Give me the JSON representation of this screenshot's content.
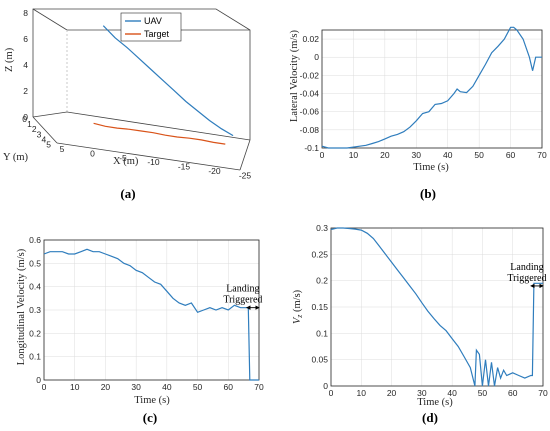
{
  "chart_data": [
    {
      "panel": "(a)",
      "type": "line",
      "projection": "3d",
      "xlabel": "X (m)",
      "ylabel": "Y (m)",
      "zlabel": "Z (m)",
      "x_ticks": [
        "5",
        "0",
        "-5",
        "-10",
        "-15",
        "-20",
        "-25"
      ],
      "y_ticks": [
        "0",
        "1",
        "2",
        "3",
        "4",
        "5"
      ],
      "z_ticks": [
        "0",
        "2",
        "4",
        "6",
        "8"
      ],
      "xlim": [
        5,
        -25
      ],
      "ylim": [
        0,
        5
      ],
      "zlim": [
        0,
        8
      ],
      "legend": "top-right",
      "series": [
        {
          "name": "UAV",
          "color": "#2f7dbd",
          "x": [
            -2,
            -4,
            -6,
            -8,
            -10,
            -12,
            -14,
            -16,
            -18,
            -20,
            -22,
            -24
          ],
          "y": [
            0,
            0,
            0,
            0,
            0,
            0,
            0,
            0,
            0,
            0,
            0,
            0
          ],
          "z": [
            7.1,
            6.3,
            5.7,
            5.0,
            4.3,
            3.6,
            2.9,
            2.2,
            1.6,
            1.0,
            0.5,
            0.1
          ]
        },
        {
          "name": "Target",
          "color": "#d95319",
          "x": [
            -2,
            -4,
            -6,
            -8,
            -10,
            -12,
            -14,
            -16,
            -18,
            -20,
            -22,
            -24
          ],
          "y": [
            2.1,
            2.1,
            2.1,
            2.0,
            2.0,
            2.0,
            1.9,
            1.9,
            1.8,
            1.8,
            1.7,
            1.7
          ],
          "z": [
            0.4,
            0.3,
            0.3,
            0.3,
            0.3,
            0.3,
            0.2,
            0.2,
            0.2,
            0.2,
            0.1,
            0.1
          ]
        }
      ]
    },
    {
      "panel": "(b)",
      "type": "line",
      "xlabel": "Time (s)",
      "ylabel": "Lateral Velocity (m/s)",
      "xlim": [
        0,
        70
      ],
      "ylim": [
        -0.1,
        0.03
      ],
      "x_ticks": [
        0,
        10,
        20,
        30,
        40,
        50,
        60,
        70
      ],
      "y_ticks": [
        -0.1,
        -0.08,
        -0.06,
        -0.04,
        -0.02,
        0,
        0.02
      ],
      "y_tick_labels": [
        "-0.1",
        "-0.08",
        "-0.06",
        "-0.04",
        "-0.02",
        "0",
        "0.02"
      ],
      "grid": true,
      "series": [
        {
          "color": "#2f7dbd",
          "x": [
            0,
            2,
            4,
            6,
            8,
            10,
            12,
            14,
            16,
            18,
            20,
            22,
            24,
            26,
            28,
            30,
            32,
            34,
            36,
            38,
            40,
            42,
            43,
            44,
            46,
            48,
            50,
            52,
            54,
            56,
            58,
            60,
            61,
            62,
            64,
            66,
            67,
            68,
            70
          ],
          "y": [
            -0.098,
            -0.1,
            -0.1,
            -0.1,
            -0.1,
            -0.099,
            -0.098,
            -0.097,
            -0.095,
            -0.093,
            -0.09,
            -0.087,
            -0.085,
            -0.082,
            -0.077,
            -0.07,
            -0.062,
            -0.06,
            -0.052,
            -0.051,
            -0.048,
            -0.04,
            -0.035,
            -0.038,
            -0.039,
            -0.032,
            -0.02,
            -0.008,
            0.005,
            0.012,
            0.02,
            0.033,
            0.033,
            0.03,
            0.02,
            0.0,
            -0.015,
            0.0,
            0.0
          ]
        }
      ]
    },
    {
      "panel": "(c)",
      "type": "line",
      "xlabel": "Time (s)",
      "ylabel": "Longitudinal Velocity (m/s)",
      "xlim": [
        0,
        70
      ],
      "ylim": [
        0,
        0.6
      ],
      "x_ticks": [
        0,
        10,
        20,
        30,
        40,
        50,
        60,
        70
      ],
      "y_ticks": [
        0,
        0.1,
        0.2,
        0.3,
        0.4,
        0.5,
        0.6
      ],
      "y_tick_labels": [
        "0",
        "0.1",
        "0.2",
        "0.3",
        "0.4",
        "0.5",
        "0.6"
      ],
      "grid": true,
      "annotation": {
        "text_line1": "Landing",
        "text_line2": "Triggered",
        "x_from": 66,
        "x_to": 70,
        "y": 0.31
      },
      "series": [
        {
          "color": "#2f7dbd",
          "x": [
            0,
            2,
            4,
            6,
            8,
            10,
            12,
            14,
            16,
            18,
            20,
            22,
            24,
            26,
            28,
            30,
            32,
            34,
            36,
            38,
            40,
            42,
            44,
            46,
            48,
            50,
            52,
            54,
            56,
            58,
            60,
            62,
            64,
            66,
            66.5,
            67,
            70
          ],
          "y": [
            0.54,
            0.55,
            0.55,
            0.55,
            0.54,
            0.54,
            0.55,
            0.56,
            0.55,
            0.55,
            0.54,
            0.53,
            0.52,
            0.5,
            0.49,
            0.47,
            0.46,
            0.44,
            0.42,
            0.41,
            0.38,
            0.35,
            0.33,
            0.32,
            0.33,
            0.29,
            0.3,
            0.31,
            0.3,
            0.31,
            0.3,
            0.32,
            0.31,
            0.31,
            0.31,
            0.0,
            0.0
          ]
        }
      ]
    },
    {
      "panel": "(d)",
      "type": "line",
      "xlabel": "Time (s)",
      "ylabel": "V_z (m/s)",
      "xlim": [
        0,
        70
      ],
      "ylim": [
        0,
        0.3
      ],
      "x_ticks": [
        0,
        10,
        20,
        30,
        40,
        50,
        60,
        70
      ],
      "y_ticks": [
        0,
        0.05,
        0.1,
        0.15,
        0.2,
        0.25,
        0.3
      ],
      "y_tick_labels": [
        "0",
        "0.05",
        "0.1",
        "0.15",
        "0.2",
        "0.25",
        "0.3"
      ],
      "grid": true,
      "annotation": {
        "text_line1": "Landing",
        "text_line2": "Triggered",
        "x_from": 66,
        "x_to": 70,
        "y": 0.19
      },
      "series": [
        {
          "color": "#2f7dbd",
          "x": [
            0,
            2,
            4,
            6,
            8,
            10,
            12,
            14,
            16,
            18,
            20,
            22,
            24,
            26,
            28,
            30,
            32,
            34,
            36,
            38,
            40,
            42,
            44,
            46,
            47.5,
            48,
            49,
            50,
            51,
            52,
            53,
            54,
            55,
            56,
            57,
            58,
            60,
            62,
            64,
            66,
            66.5,
            67,
            70
          ],
          "y": [
            0.297,
            0.3,
            0.3,
            0.299,
            0.298,
            0.296,
            0.29,
            0.28,
            0.265,
            0.25,
            0.235,
            0.22,
            0.205,
            0.19,
            0.175,
            0.158,
            0.142,
            0.128,
            0.115,
            0.105,
            0.09,
            0.075,
            0.055,
            0.035,
            0.0,
            0.068,
            0.06,
            0.0,
            0.05,
            0.0,
            0.045,
            0.0,
            0.035,
            0.015,
            0.03,
            0.02,
            0.025,
            0.02,
            0.015,
            0.02,
            0.02,
            0.195,
            0.195
          ]
        }
      ]
    }
  ]
}
